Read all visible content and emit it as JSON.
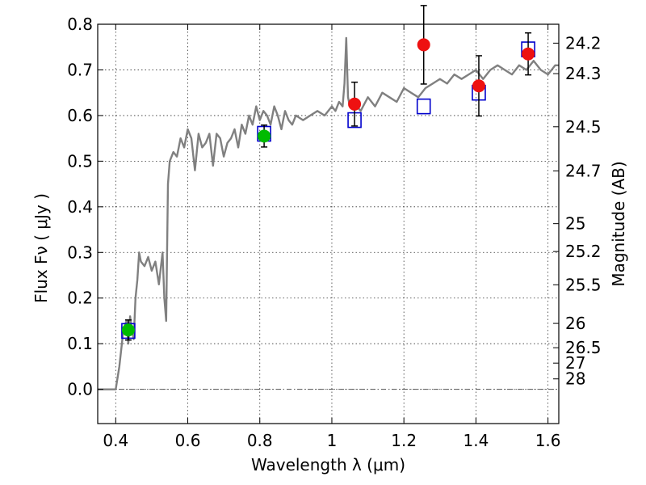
{
  "chart_data": {
    "type": "line",
    "xlabel": "Wavelength  λ (μm)",
    "ylabel": "Flux  Fν  ( μJy )",
    "y2label": "Magnitude (AB)",
    "xlim": [
      0.35,
      1.63
    ],
    "ylim": [
      -0.075,
      0.8
    ],
    "grid": true,
    "x_ticks": [
      0.4,
      0.6,
      0.8,
      1.0,
      1.2,
      1.4,
      1.6
    ],
    "x_tick_labels": [
      "0.4",
      "0.6",
      "0.8",
      "1",
      "1.2",
      "1.4",
      "1.6"
    ],
    "y_ticks": [
      0.0,
      0.1,
      0.2,
      0.3,
      0.4,
      0.5,
      0.6,
      0.7,
      0.8
    ],
    "y_tick_labels": [
      "0.0",
      "0.1",
      "0.2",
      "0.3",
      "0.4",
      "0.5",
      "0.6",
      "0.7",
      "0.8"
    ],
    "magnitude_ticks": [
      {
        "label": "24.2",
        "flux": 0.7586
      },
      {
        "label": "24.3",
        "flux": 0.6918
      },
      {
        "label": "24.5",
        "flux": 0.5754
      },
      {
        "label": "24.7",
        "flux": 0.4786
      },
      {
        "label": "25",
        "flux": 0.3631
      },
      {
        "label": "25.2",
        "flux": 0.302
      },
      {
        "label": "25.5",
        "flux": 0.2291
      },
      {
        "label": "26",
        "flux": 0.1445
      },
      {
        "label": "26.5",
        "flux": 0.0912
      },
      {
        "label": "27",
        "flux": 0.0575
      },
      {
        "label": "28",
        "flux": 0.0229
      }
    ],
    "series": [
      {
        "kind": "model-spectrum",
        "color": "#808080",
        "x": [
          0.35,
          0.4,
          0.41,
          0.42,
          0.425,
          0.43,
          0.435,
          0.44,
          0.445,
          0.45,
          0.455,
          0.46,
          0.465,
          0.47,
          0.48,
          0.49,
          0.5,
          0.51,
          0.52,
          0.53,
          0.535,
          0.54,
          0.545,
          0.55,
          0.56,
          0.57,
          0.58,
          0.59,
          0.6,
          0.61,
          0.62,
          0.63,
          0.64,
          0.65,
          0.66,
          0.67,
          0.68,
          0.69,
          0.7,
          0.71,
          0.72,
          0.73,
          0.74,
          0.75,
          0.76,
          0.77,
          0.78,
          0.79,
          0.8,
          0.81,
          0.82,
          0.83,
          0.84,
          0.85,
          0.86,
          0.87,
          0.88,
          0.89,
          0.9,
          0.92,
          0.94,
          0.96,
          0.98,
          1.0,
          1.01,
          1.02,
          1.03,
          1.035,
          1.04,
          1.045,
          1.05,
          1.06,
          1.08,
          1.1,
          1.12,
          1.14,
          1.16,
          1.18,
          1.2,
          1.22,
          1.24,
          1.26,
          1.28,
          1.3,
          1.32,
          1.34,
          1.36,
          1.38,
          1.4,
          1.42,
          1.44,
          1.46,
          1.48,
          1.5,
          1.52,
          1.54,
          1.56,
          1.58,
          1.6,
          1.61,
          1.62,
          1.63
        ],
        "y": [
          0.0,
          0.0,
          0.05,
          0.12,
          0.14,
          0.15,
          0.1,
          0.16,
          0.13,
          0.11,
          0.2,
          0.24,
          0.3,
          0.28,
          0.27,
          0.29,
          0.26,
          0.28,
          0.23,
          0.3,
          0.2,
          0.15,
          0.45,
          0.5,
          0.52,
          0.51,
          0.55,
          0.53,
          0.57,
          0.55,
          0.48,
          0.56,
          0.53,
          0.54,
          0.56,
          0.49,
          0.56,
          0.55,
          0.51,
          0.54,
          0.55,
          0.57,
          0.53,
          0.58,
          0.56,
          0.6,
          0.58,
          0.62,
          0.59,
          0.61,
          0.6,
          0.58,
          0.62,
          0.6,
          0.57,
          0.61,
          0.59,
          0.58,
          0.6,
          0.59,
          0.6,
          0.61,
          0.6,
          0.62,
          0.61,
          0.63,
          0.62,
          0.67,
          0.77,
          0.64,
          0.62,
          0.63,
          0.61,
          0.64,
          0.62,
          0.65,
          0.64,
          0.63,
          0.66,
          0.65,
          0.64,
          0.66,
          0.67,
          0.68,
          0.67,
          0.69,
          0.68,
          0.69,
          0.7,
          0.68,
          0.7,
          0.71,
          0.7,
          0.69,
          0.71,
          0.7,
          0.72,
          0.7,
          0.69,
          0.7,
          0.71,
          0.71
        ]
      },
      {
        "kind": "model-photometry",
        "marker": "open-square",
        "color": "#0000cc",
        "x": [
          0.435,
          0.812,
          1.063,
          1.255,
          1.408,
          1.545
        ],
        "y": [
          0.128,
          0.56,
          0.59,
          0.62,
          0.65,
          0.745
        ]
      },
      {
        "kind": "observed-photometry-green",
        "marker": "filled-circle",
        "color": "#00bb00",
        "x": [
          0.435,
          0.812
        ],
        "y": [
          0.13,
          0.555
        ],
        "err": [
          0.022,
          0.024
        ]
      },
      {
        "kind": "observed-photometry-red",
        "marker": "filled-circle",
        "color": "#ee1111",
        "x": [
          1.063,
          1.255,
          1.408,
          1.545
        ],
        "y": [
          0.625,
          0.755,
          0.665,
          0.735
        ],
        "err": [
          0.048,
          0.086,
          0.066,
          0.046
        ]
      }
    ]
  }
}
